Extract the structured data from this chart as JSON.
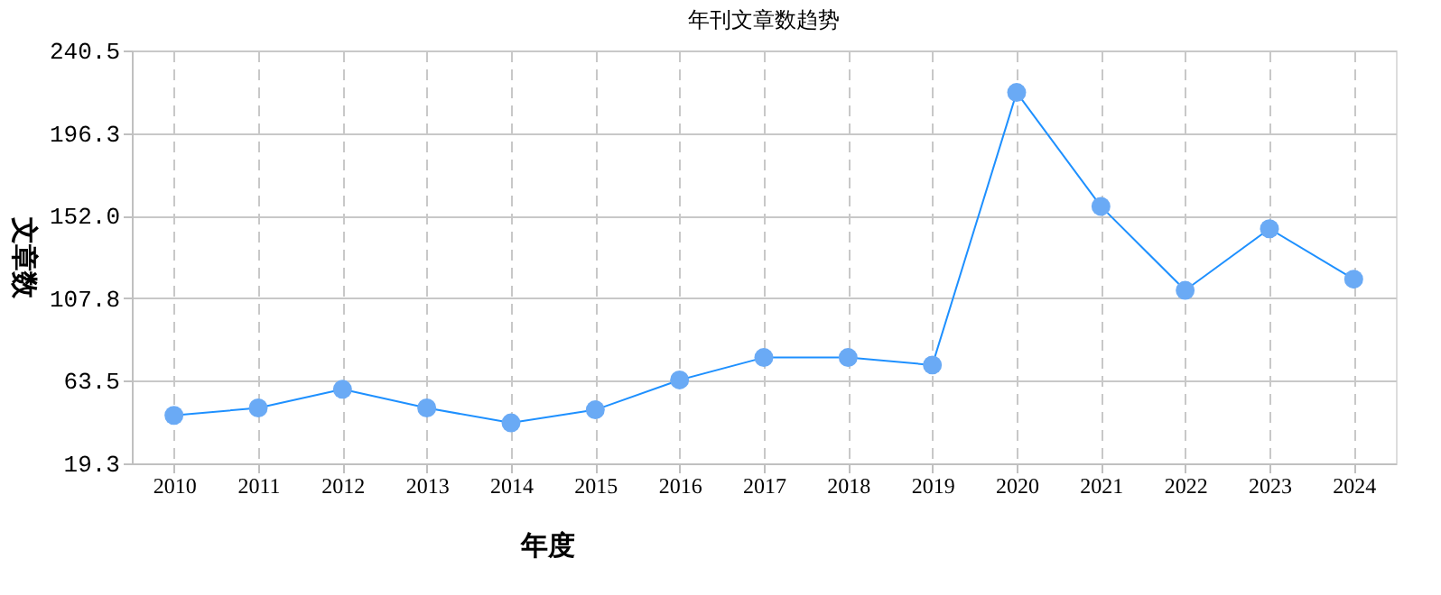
{
  "chart_data": {
    "type": "line",
    "title": "年刊文章数趋势",
    "xlabel": "年度",
    "ylabel": "文章数",
    "categories": [
      "2010",
      "2011",
      "2012",
      "2013",
      "2014",
      "2015",
      "2016",
      "2017",
      "2018",
      "2019",
      "2020",
      "2021",
      "2022",
      "2023",
      "2024"
    ],
    "series": [
      {
        "color": "#1e90ff",
        "values": [
          45,
          49,
          59,
          49,
          41,
          48,
          64,
          76,
          76,
          72,
          218,
          157,
          112,
          145,
          118
        ]
      }
    ],
    "ylim": [
      19.3,
      240.5
    ],
    "yticks": [
      19.3,
      63.5,
      107.8,
      {
        "value": 152,
        "label": "152.0"
      },
      196.3,
      240.5
    ],
    "grid": true,
    "marker": "circle",
    "line_style": "solid"
  }
}
